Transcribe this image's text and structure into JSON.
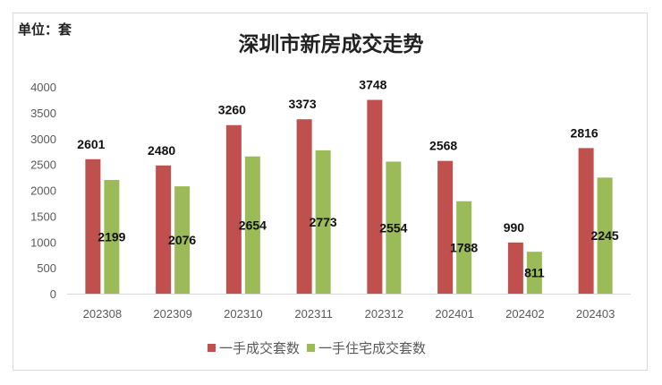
{
  "unit_label": "单位：套",
  "chart_data": {
    "type": "bar",
    "title": "深圳市新房成交走势",
    "categories": [
      "202308",
      "202309",
      "202310",
      "202311",
      "202312",
      "202401",
      "202402",
      "202403"
    ],
    "series": [
      {
        "name": "一手成交套数",
        "color": "#c0504d",
        "values": [
          2601,
          2480,
          3260,
          3373,
          3748,
          2568,
          990,
          2816
        ]
      },
      {
        "name": "一手住宅成交套数",
        "color": "#9bbb59",
        "values": [
          2199,
          2076,
          2654,
          2773,
          2554,
          1788,
          811,
          2245
        ]
      }
    ],
    "ylim": [
      0,
      4000
    ],
    "yticks": [
      0,
      500,
      1000,
      1500,
      2000,
      2500,
      3000,
      3500,
      4000
    ],
    "xlabel": "",
    "ylabel": "",
    "grid": false,
    "legend": "bottom"
  }
}
